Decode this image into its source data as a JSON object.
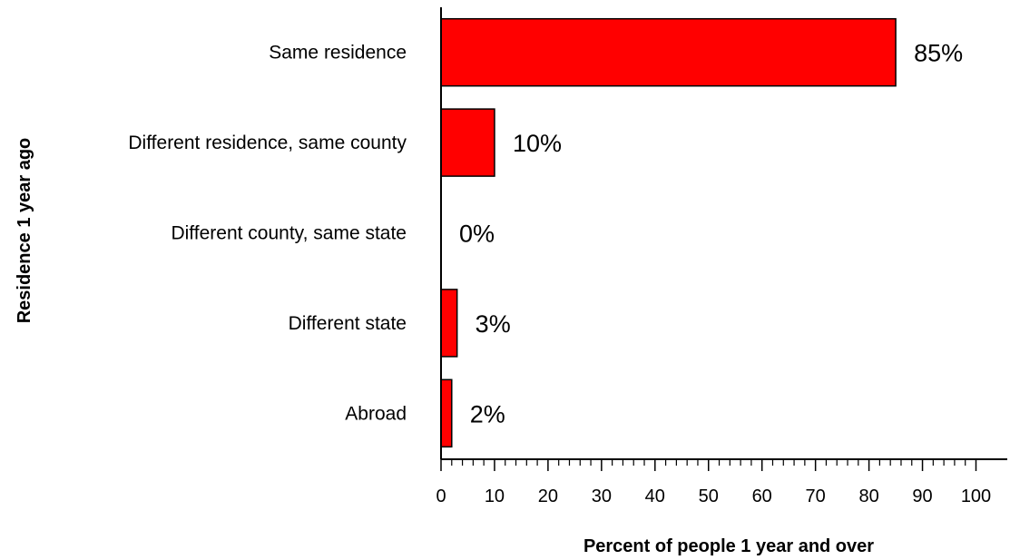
{
  "chart_data": {
    "type": "bar",
    "orientation": "horizontal",
    "categories": [
      "Same residence",
      "Different residence, same county",
      "Different county, same state",
      "Different state",
      "Abroad"
    ],
    "values": [
      85,
      10,
      0,
      3,
      2
    ],
    "value_labels": [
      "85%",
      "10%",
      "0%",
      "3%",
      "2%"
    ],
    "xlabel": "Percent of people 1 year and over",
    "ylabel": "Residence 1 year ago",
    "xlim": [
      0,
      100
    ],
    "x_ticks": [
      0,
      10,
      20,
      30,
      40,
      50,
      60,
      70,
      80,
      90,
      100
    ],
    "bar_color": "#ff0000",
    "grid": false,
    "legend": "none"
  }
}
